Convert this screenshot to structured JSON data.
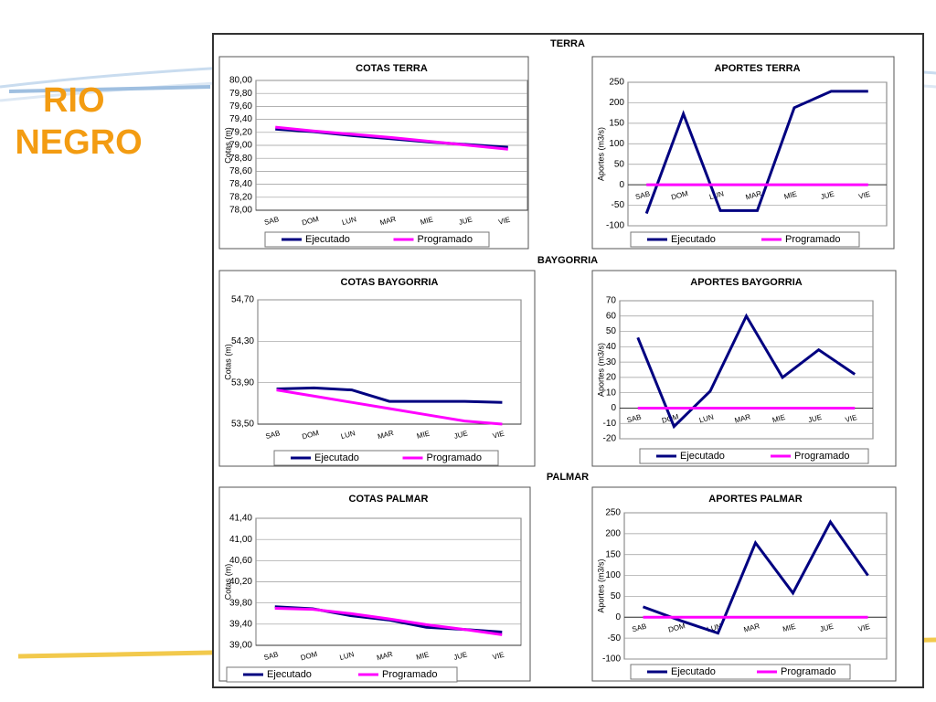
{
  "title": "RIO NEGRO",
  "sections": [
    "TERRA",
    "BAYGORRIA",
    "PALMAR"
  ],
  "chart_data": [
    {
      "type": "line",
      "title": "COTAS TERRA",
      "ylabel": "Cotas (m)",
      "categories": [
        "SAB",
        "DOM",
        "LUN",
        "MAR",
        "MIE",
        "JUE",
        "VIE"
      ],
      "series": [
        {
          "name": "Ejecutado",
          "color": "#000080",
          "values": [
            79.25,
            79.21,
            79.15,
            79.1,
            79.05,
            79.01,
            78.97
          ]
        },
        {
          "name": "Programado",
          "color": "#ff00ff",
          "values": [
            79.28,
            79.22,
            79.17,
            79.12,
            79.06,
            79.0,
            78.94
          ]
        }
      ],
      "ylim": [
        78,
        80
      ],
      "yticks": [
        {
          "value": 78,
          "label": "78,00"
        },
        {
          "value": 78.2,
          "label": "78,20"
        },
        {
          "value": 78.4,
          "label": "78,40"
        },
        {
          "value": 78.6,
          "label": "78,60"
        },
        {
          "value": 78.8,
          "label": "78,80"
        },
        {
          "value": 79,
          "label": "79,00"
        },
        {
          "value": 79.2,
          "label": "79,20"
        },
        {
          "value": 79.4,
          "label": "79,40"
        },
        {
          "value": 79.6,
          "label": "79,60"
        },
        {
          "value": 79.8,
          "label": "79,80"
        },
        {
          "value": 80,
          "label": "80,00"
        }
      ],
      "grid": true,
      "legend": "bottom"
    },
    {
      "type": "line",
      "title": "APORTES TERRA",
      "ylabel": "Aportes (m3/s)",
      "categories": [
        "SAB",
        "DOM",
        "LUN",
        "MAR",
        "MIE",
        "JUE",
        "VIE"
      ],
      "series": [
        {
          "name": "Ejecutado",
          "color": "#000080",
          "values": [
            -70,
            173,
            -63,
            -63,
            188,
            228,
            228
          ]
        },
        {
          "name": "Programado",
          "color": "#ff00ff",
          "values": [
            0,
            0,
            0,
            0,
            0,
            0,
            0
          ]
        }
      ],
      "ylim": [
        -100,
        250
      ],
      "yticks": [
        -100,
        -50,
        0,
        50,
        100,
        150,
        200,
        250
      ],
      "grid": true,
      "legend": "bottom"
    },
    {
      "type": "line",
      "title": "COTAS BAYGORRIA",
      "ylabel": "Cotas (m)",
      "categories": [
        "SAB",
        "DOM",
        "LUN",
        "MAR",
        "MIE",
        "JUE",
        "VIE"
      ],
      "series": [
        {
          "name": "Ejecutado",
          "color": "#000080",
          "values": [
            53.84,
            53.85,
            53.83,
            53.72,
            53.72,
            53.72,
            53.71
          ]
        },
        {
          "name": "Programado",
          "color": "#ff00ff",
          "values": [
            53.83,
            53.77,
            53.71,
            53.65,
            53.59,
            53.53,
            53.5
          ]
        }
      ],
      "ylim": [
        53.5,
        54.7
      ],
      "yticks": [
        {
          "value": 53.5,
          "label": "53,50"
        },
        {
          "value": 53.9,
          "label": "53,90"
        },
        {
          "value": 54.3,
          "label": "54,30"
        },
        {
          "value": 54.7,
          "label": "54,70"
        }
      ],
      "grid": true,
      "legend": "bottom"
    },
    {
      "type": "line",
      "title": "APORTES BAYGORRIA",
      "ylabel": "Aportes (m3/s)",
      "categories": [
        "SAB",
        "DOM",
        "LUN",
        "MAR",
        "MIE",
        "JUE",
        "VIE"
      ],
      "series": [
        {
          "name": "Ejecutado",
          "color": "#000080",
          "values": [
            46,
            -12,
            11,
            60,
            20,
            38,
            22
          ]
        },
        {
          "name": "Programado",
          "color": "#ff00ff",
          "values": [
            0,
            0,
            0,
            0,
            0,
            0,
            0
          ]
        }
      ],
      "ylim": [
        -20,
        70
      ],
      "yticks": [
        -20,
        -10,
        0,
        10,
        20,
        30,
        40,
        50,
        60,
        70
      ],
      "grid": true,
      "legend": "bottom"
    },
    {
      "type": "line",
      "title": "COTAS PALMAR",
      "ylabel": "Cotas (m)",
      "categories": [
        "SAB",
        "DOM",
        "LUN",
        "MAR",
        "MIE",
        "JUE",
        "VIE"
      ],
      "series": [
        {
          "name": "Ejecutado",
          "color": "#000080",
          "values": [
            39.73,
            39.69,
            39.56,
            39.48,
            39.34,
            39.3,
            39.25
          ]
        },
        {
          "name": "Programado",
          "color": "#ff00ff",
          "values": [
            39.7,
            39.68,
            39.6,
            39.5,
            39.39,
            39.3,
            39.2
          ]
        }
      ],
      "ylim": [
        39,
        41.4
      ],
      "yticks": [
        {
          "value": 39,
          "label": "39,00"
        },
        {
          "value": 39.4,
          "label": "39,40"
        },
        {
          "value": 39.8,
          "label": "39,80"
        },
        {
          "value": 40.2,
          "label": "40,20"
        },
        {
          "value": 40.6,
          "label": "40,60"
        },
        {
          "value": 41,
          "label": "41,00"
        },
        {
          "value": 41.4,
          "label": "41,40"
        }
      ],
      "grid": true,
      "legend": "bottom"
    },
    {
      "type": "line",
      "title": "APORTES PALMAR",
      "ylabel": "Aportes (m3/s)",
      "categories": [
        "SAB",
        "DOM",
        "LUN",
        "MAR",
        "MIE",
        "JUE",
        "VIE"
      ],
      "series": [
        {
          "name": "Ejecutado",
          "color": "#000080",
          "values": [
            25,
            -8,
            -38,
            178,
            58,
            228,
            100
          ]
        },
        {
          "name": "Programado",
          "color": "#ff00ff",
          "values": [
            0,
            0,
            0,
            0,
            0,
            0,
            0
          ]
        }
      ],
      "ylim": [
        -100,
        250
      ],
      "yticks": [
        -100,
        -50,
        0,
        50,
        100,
        150,
        200,
        250
      ],
      "grid": true,
      "legend": "bottom"
    }
  ]
}
